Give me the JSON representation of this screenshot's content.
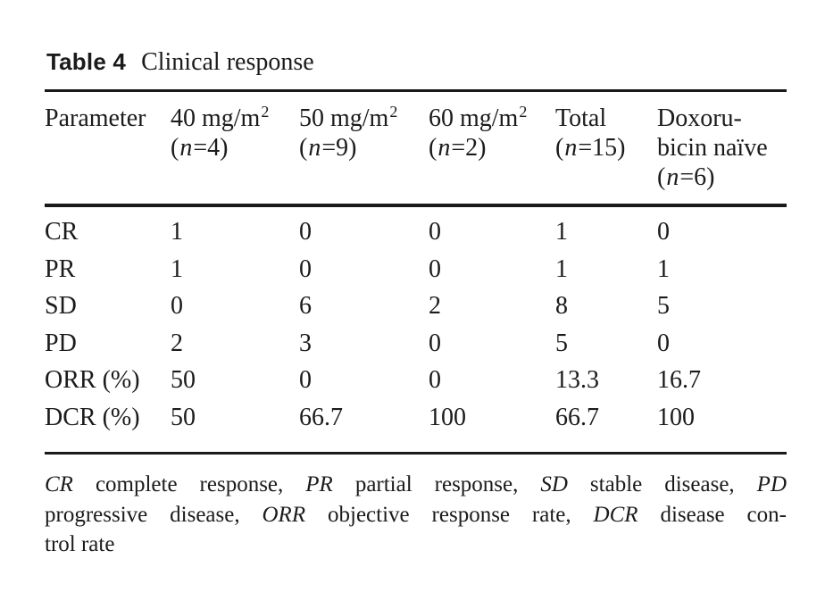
{
  "page": {
    "background": "#ffffff",
    "text_color": "#1b1b1b",
    "rule_color": "#1a1a1a"
  },
  "caption": {
    "label": "Table 4",
    "title": "Clinical response"
  },
  "table": {
    "columns": {
      "c1": {
        "label": "Parameter"
      },
      "c2": {
        "dose": "40 mg/m",
        "sup": "2",
        "n_open": "(",
        "n": "n",
        "n_rest": "=4)"
      },
      "c3": {
        "dose": "50 mg/m",
        "sup": "2",
        "n_open": "(",
        "n": "n",
        "n_rest": "=9)"
      },
      "c4": {
        "dose": "60 mg/m",
        "sup": "2",
        "n_open": "(",
        "n": "n",
        "n_rest": "=2)"
      },
      "c5": {
        "label": "Total",
        "n_open": "(",
        "n": "n",
        "n_rest": "=15)"
      },
      "c6": {
        "line1": "Doxoru-",
        "line2": "bicin naïve",
        "n_open": "(",
        "n": "n",
        "n_rest": "=6)"
      }
    },
    "rows": [
      {
        "label": "CR",
        "values": [
          "1",
          "0",
          "0",
          "1",
          "0"
        ]
      },
      {
        "label": "PR",
        "values": [
          "1",
          "0",
          "0",
          "1",
          "1"
        ]
      },
      {
        "label": "SD",
        "values": [
          "0",
          "6",
          "2",
          "8",
          "5"
        ]
      },
      {
        "label": "PD",
        "values": [
          "2",
          "3",
          "0",
          "5",
          "0"
        ]
      },
      {
        "label": "ORR (%)",
        "values": [
          "50",
          "0",
          "0",
          "13.3",
          "16.7"
        ]
      },
      {
        "label": "DCR (%)",
        "values": [
          "50",
          "66.7",
          "100",
          "66.7",
          "100"
        ]
      }
    ]
  },
  "footnote": {
    "line1": [
      "CR",
      " complete response, ",
      "PR",
      " partial response, ",
      "SD",
      " stable disease, ",
      "PD"
    ],
    "line2": [
      "progressive disease, ",
      "ORR",
      " objective response rate, ",
      "DCR",
      " disease con-"
    ],
    "line3": "trol rate"
  }
}
